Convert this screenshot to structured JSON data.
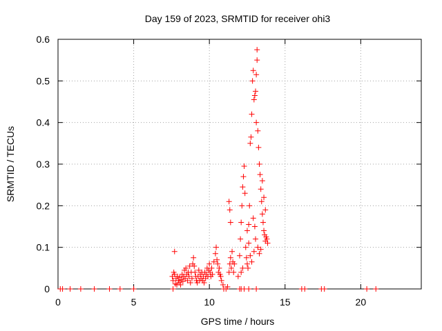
{
  "chart_data": {
    "type": "scatter",
    "title": "Day 159 of 2023, SRMTID for receiver ohi3",
    "xlabel": "GPS time / hours",
    "ylabel": "SRMTID / TECUs",
    "xlim": [
      0,
      24
    ],
    "ylim": [
      0,
      0.6
    ],
    "x_ticks": [
      0,
      5,
      10,
      15,
      20
    ],
    "y_ticks": [
      0,
      0.1,
      0.2,
      0.3,
      0.4,
      0.5,
      0.6
    ],
    "x_tick_labels": [
      "0",
      "5",
      "10",
      "15",
      "20"
    ],
    "y_tick_labels": [
      "0",
      "0.1",
      "0.2",
      "0.3",
      "0.4",
      "0.5",
      "0.6"
    ],
    "grid": true,
    "marker": "+",
    "marker_color": "#ff0000",
    "series": [
      {
        "name": "SRMTID",
        "points": [
          [
            0.15,
            0
          ],
          [
            0.3,
            0
          ],
          [
            0.8,
            0
          ],
          [
            1.5,
            0
          ],
          [
            2.4,
            0
          ],
          [
            3.4,
            0
          ],
          [
            4.1,
            0
          ],
          [
            5.0,
            0
          ],
          [
            7.6,
            0
          ],
          [
            7.55,
            0.03
          ],
          [
            7.6,
            0.02
          ],
          [
            7.65,
            0.04
          ],
          [
            7.7,
            0.09
          ],
          [
            7.7,
            0.035
          ],
          [
            7.75,
            0.012
          ],
          [
            7.8,
            0.025
          ],
          [
            7.85,
            0.01
          ],
          [
            7.9,
            0.03
          ],
          [
            7.95,
            0.02
          ],
          [
            8.0,
            0.015
          ],
          [
            8.05,
            0.028
          ],
          [
            8.1,
            0.01
          ],
          [
            8.15,
            0.022
          ],
          [
            8.2,
            0.035
          ],
          [
            8.25,
            0.018
          ],
          [
            8.3,
            0.03
          ],
          [
            8.35,
            0.045
          ],
          [
            8.4,
            0.025
          ],
          [
            8.45,
            0.05
          ],
          [
            8.5,
            0.035
          ],
          [
            8.55,
            0.02
          ],
          [
            8.6,
            0.04
          ],
          [
            8.65,
            0.03
          ],
          [
            8.7,
            0.055
          ],
          [
            8.75,
            0.015
          ],
          [
            8.8,
            0.04
          ],
          [
            8.85,
            0.025
          ],
          [
            8.9,
            0.06
          ],
          [
            8.95,
            0.075
          ],
          [
            9.0,
            0.055
          ],
          [
            9.05,
            0.04
          ],
          [
            9.1,
            0.03
          ],
          [
            9.15,
            0.02
          ],
          [
            9.2,
            0.015
          ],
          [
            9.25,
            0.03
          ],
          [
            9.3,
            0.045
          ],
          [
            9.35,
            0.02
          ],
          [
            9.4,
            0.035
          ],
          [
            9.45,
            0.025
          ],
          [
            9.5,
            0.04
          ],
          [
            9.55,
            0.02
          ],
          [
            9.6,
            0.03
          ],
          [
            9.65,
            0.015
          ],
          [
            9.7,
            0.04
          ],
          [
            9.75,
            0.025
          ],
          [
            9.8,
            0.035
          ],
          [
            9.85,
            0.05
          ],
          [
            9.9,
            0.03
          ],
          [
            9.95,
            0.045
          ],
          [
            10.0,
            0.06
          ],
          [
            10.05,
            0.04
          ],
          [
            10.1,
            0.03
          ],
          [
            10.15,
            0.05
          ],
          [
            10.2,
            0.035
          ],
          [
            10.3,
            0.065
          ],
          [
            10.4,
            0.085
          ],
          [
            10.45,
            0.1
          ],
          [
            10.5,
            0.07
          ],
          [
            10.55,
            0.06
          ],
          [
            10.6,
            0.04
          ],
          [
            10.65,
            0.05
          ],
          [
            10.7,
            0.035
          ],
          [
            10.75,
            0.03
          ],
          [
            10.8,
            0.02
          ],
          [
            10.9,
            0.01
          ],
          [
            10.95,
            0
          ],
          [
            11.1,
            0
          ],
          [
            11.2,
            0.005
          ],
          [
            11.3,
            0.04
          ],
          [
            11.35,
            0.06
          ],
          [
            11.4,
            0.075
          ],
          [
            11.45,
            0.05
          ],
          [
            11.5,
            0.09
          ],
          [
            11.55,
            0.065
          ],
          [
            11.6,
            0.04
          ],
          [
            11.65,
            0.06
          ],
          [
            11.3,
            0.21
          ],
          [
            11.35,
            0.19
          ],
          [
            11.4,
            0.16
          ],
          [
            11.9,
            0.03
          ],
          [
            12.0,
            0.08
          ],
          [
            12.05,
            0.12
          ],
          [
            12.1,
            0.16
          ],
          [
            12.15,
            0.2
          ],
          [
            12.2,
            0.245
          ],
          [
            12.25,
            0.27
          ],
          [
            12.3,
            0.295
          ],
          [
            12.35,
            0.23
          ],
          [
            12.4,
            0.1
          ],
          [
            12.45,
            0.075
          ],
          [
            12.5,
            0.06
          ],
          [
            12.55,
            0.05
          ],
          [
            12.6,
            0.155
          ],
          [
            12.65,
            0.2
          ],
          [
            12.7,
            0.35
          ],
          [
            12.75,
            0.365
          ],
          [
            12.8,
            0.42
          ],
          [
            12.85,
            0.5
          ],
          [
            12.9,
            0.525
          ],
          [
            12.95,
            0.455
          ],
          [
            13.0,
            0.465
          ],
          [
            13.05,
            0.475
          ],
          [
            13.1,
            0.515
          ],
          [
            13.15,
            0.575
          ],
          [
            13.15,
            0.55
          ],
          [
            13.1,
            0.4
          ],
          [
            13.2,
            0.38
          ],
          [
            13.25,
            0.34
          ],
          [
            13.3,
            0.3
          ],
          [
            13.35,
            0.275
          ],
          [
            13.4,
            0.24
          ],
          [
            13.45,
            0.21
          ],
          [
            13.5,
            0.18
          ],
          [
            13.55,
            0.16
          ],
          [
            13.6,
            0.14
          ],
          [
            13.65,
            0.13
          ],
          [
            13.7,
            0.115
          ],
          [
            13.75,
            0.125
          ],
          [
            13.8,
            0.12
          ],
          [
            13.85,
            0.11
          ],
          [
            12.9,
            0.17
          ],
          [
            13.0,
            0.15
          ],
          [
            13.05,
            0.12
          ],
          [
            12.95,
            0.09
          ],
          [
            13.2,
            0.1
          ],
          [
            13.3,
            0.085
          ],
          [
            13.4,
            0.095
          ],
          [
            12.7,
            0.08
          ],
          [
            12.8,
            0.065
          ],
          [
            12.6,
            0.11
          ],
          [
            12.5,
            0.14
          ],
          [
            13.5,
            0.26
          ],
          [
            13.6,
            0.22
          ],
          [
            13.7,
            0.19
          ],
          [
            12.2,
            0.05
          ],
          [
            12.1,
            0.04
          ],
          [
            12.0,
            0
          ],
          [
            12.1,
            0
          ],
          [
            12.3,
            0
          ],
          [
            12.6,
            0
          ],
          [
            13.1,
            0
          ],
          [
            16.1,
            0
          ],
          [
            16.3,
            0
          ],
          [
            17.4,
            0
          ],
          [
            17.6,
            0
          ],
          [
            20.4,
            0
          ],
          [
            21.0,
            0
          ]
        ]
      }
    ]
  }
}
